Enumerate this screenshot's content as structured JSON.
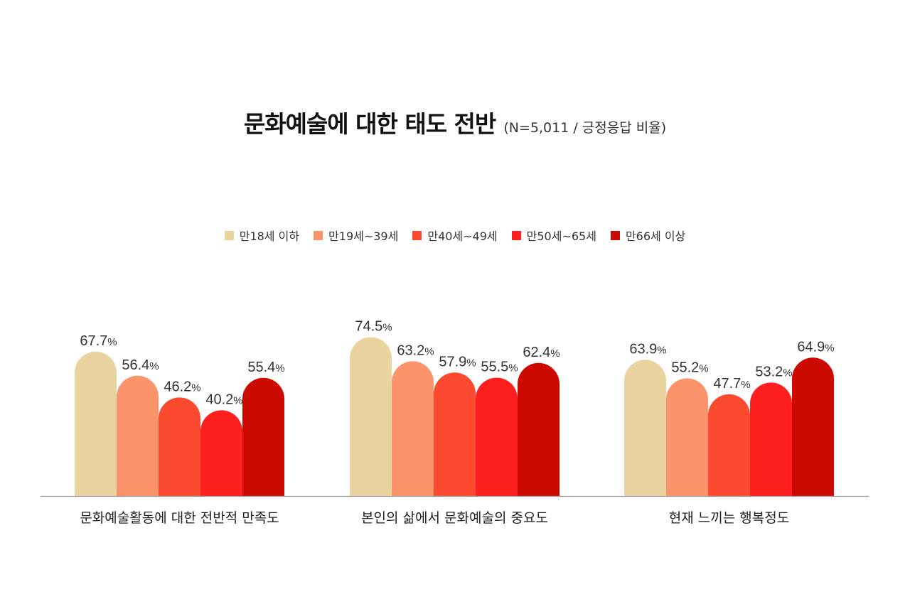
{
  "title": "문화예술에 대한 태도 전반",
  "subtitle": "(N=5,011 / 긍정응답 비율)",
  "chart_data": {
    "type": "bar",
    "categories": [
      "문화예술활동에 대한 전반적 만족도",
      "본인의 삶에서 문화예술의 중요도",
      "현재 느끼는 행복정도"
    ],
    "series": [
      {
        "name": "만18세 이하",
        "color": "#e9d39e",
        "values": [
          67.7,
          74.5,
          63.9
        ]
      },
      {
        "name": "만19세~39세",
        "color": "#fc936a",
        "values": [
          56.4,
          63.2,
          55.2
        ]
      },
      {
        "name": "만40세~49세",
        "color": "#fb4a2f",
        "values": [
          46.2,
          57.9,
          47.7
        ]
      },
      {
        "name": "만50세~65세",
        "color": "#ff1f1f",
        "values": [
          40.2,
          55.5,
          53.2
        ]
      },
      {
        "name": "만66세 이상",
        "color": "#cc0a00",
        "values": [
          55.4,
          62.4,
          64.9
        ]
      }
    ],
    "value_suffix": "%",
    "ylim": [
      0,
      100
    ],
    "legend_position": "top-center",
    "grid": false
  }
}
